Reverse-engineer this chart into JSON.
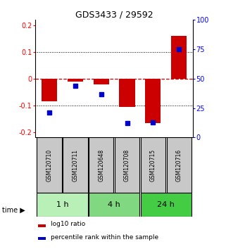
{
  "title": "GDS3433 / 29592",
  "samples": [
    "GSM120710",
    "GSM120711",
    "GSM120648",
    "GSM120708",
    "GSM120715",
    "GSM120716"
  ],
  "log10_ratio": [
    -0.085,
    -0.012,
    -0.022,
    -0.105,
    -0.165,
    0.16
  ],
  "percentile_rank_pct": [
    21,
    44,
    37,
    12,
    13,
    75
  ],
  "groups": [
    {
      "label": "1 h",
      "indices": [
        0,
        1
      ],
      "color": "#b8f0b8"
    },
    {
      "label": "4 h",
      "indices": [
        2,
        3
      ],
      "color": "#80d880"
    },
    {
      "label": "24 h",
      "indices": [
        4,
        5
      ],
      "color": "#44cc44"
    }
  ],
  "ylim": [
    -0.22,
    0.22
  ],
  "yticks_left": [
    -0.2,
    -0.1,
    0.0,
    0.1,
    0.2
  ],
  "yticks_right_pct": [
    0,
    25,
    50,
    75,
    100
  ],
  "bar_color": "#cc0000",
  "dot_color": "#0000cc",
  "hline_y0_color": "#cc0000",
  "hline_dotted_color": "#000000",
  "background_color": "#ffffff",
  "label_log10": "log10 ratio",
  "label_pct": "percentile rank within the sample",
  "sample_box_color": "#c8c8c8",
  "bar_width": 0.6
}
